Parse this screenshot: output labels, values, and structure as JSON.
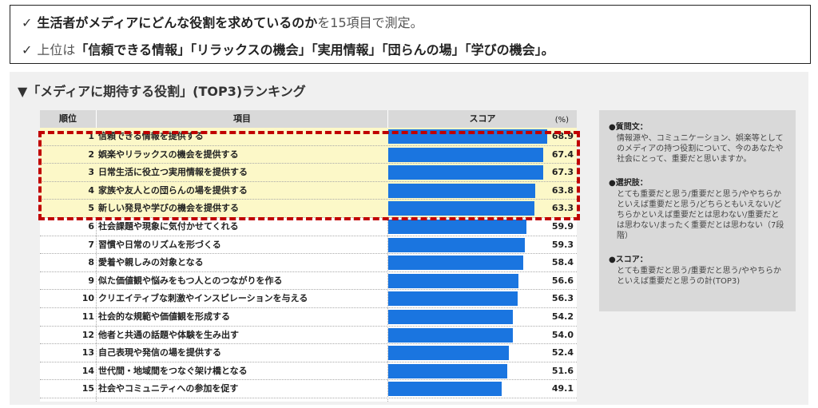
{
  "summary": {
    "check": "✓",
    "line1_bold": "生活者がメディアにどんな役割を求めているのか",
    "line1_rest": "を15項目で測定。",
    "line2_pre": "上位は",
    "line2_bold": "「信頼できる情報」「リラックスの機会」「実用情報」「団らんの場」「学びの機会」",
    "line2_end": "。"
  },
  "section_title": "▼「メディアに期待する役割」(TOP3)ランキング",
  "table": {
    "header_rank": "順位",
    "header_item": "項目",
    "header_score": "スコア",
    "header_unit": "(%)"
  },
  "chart_data": {
    "type": "bar",
    "title": "「メディアに期待する役割」(TOP3)ランキング",
    "unit": "%",
    "orientation": "horizontal",
    "xlim": [
      0,
      70
    ],
    "highlight_ranks": [
      1,
      2,
      3,
      4,
      5
    ],
    "rows": [
      {
        "rank": "1",
        "label": "信頼できる情報を提供する",
        "value": 68.9
      },
      {
        "rank": "2",
        "label": "娯楽やリラックスの機会を提供する",
        "value": 67.4
      },
      {
        "rank": "3",
        "label": "日常生活に役立つ実用情報を提供する",
        "value": 67.3
      },
      {
        "rank": "4",
        "label": "家族や友人との団らんの場を提供する",
        "value": 63.8
      },
      {
        "rank": "5",
        "label": "新しい発見や学びの機会を提供する",
        "value": 63.3
      },
      {
        "rank": "6",
        "label": "社会課題や現象に気付かせてくれる",
        "value": 59.9
      },
      {
        "rank": "7",
        "label": "習慣や日常のリズムを形づくる",
        "value": 59.3
      },
      {
        "rank": "8",
        "label": "愛着や親しみの対象となる",
        "value": 58.4
      },
      {
        "rank": "9",
        "label": "似た価値観や悩みをもつ人とのつながりを作る",
        "value": 56.6
      },
      {
        "rank": "10",
        "label": "クリエイティブな刺激やインスピレーションを与える",
        "value": 56.3
      },
      {
        "rank": "11",
        "label": "社会的な規範や価値観を形成する",
        "value": 54.2
      },
      {
        "rank": "12",
        "label": "他者と共通の話題や体験を生み出す",
        "value": 54.0
      },
      {
        "rank": "13",
        "label": "自己表現や発信の場を提供する",
        "value": 52.4
      },
      {
        "rank": "14",
        "label": "世代間・地域間をつなぐ架け橋となる",
        "value": 51.6
      },
      {
        "rank": "15",
        "label": "社会やコミュニティへの参加を促す",
        "value": 49.1
      }
    ],
    "bar_color": "#1a75e0",
    "highlight_color": "#fcf8c8",
    "frame_color": "#c00000"
  },
  "notes": {
    "q_head": "●質問文：",
    "q_body": "情報源や、コミュニケーション、娯楽等としてのメディアの持つ役割について、今のあなたや社会にとって、重要だと思いますか。",
    "c_head": "●選択肢：",
    "c_body": "とても重要だと思う/重要だと思う/ややちらかといえば重要だと思う/どちらともいえない/どちらかといえば重要だとは思わない/重要だとは思わない/まったく重要だとは思わない（7段階）",
    "s_head": "●スコア：",
    "s_body": "とても重要だと思う/重要だと思う/ややちらかといえば重要だと思うの計(TOP3)"
  }
}
